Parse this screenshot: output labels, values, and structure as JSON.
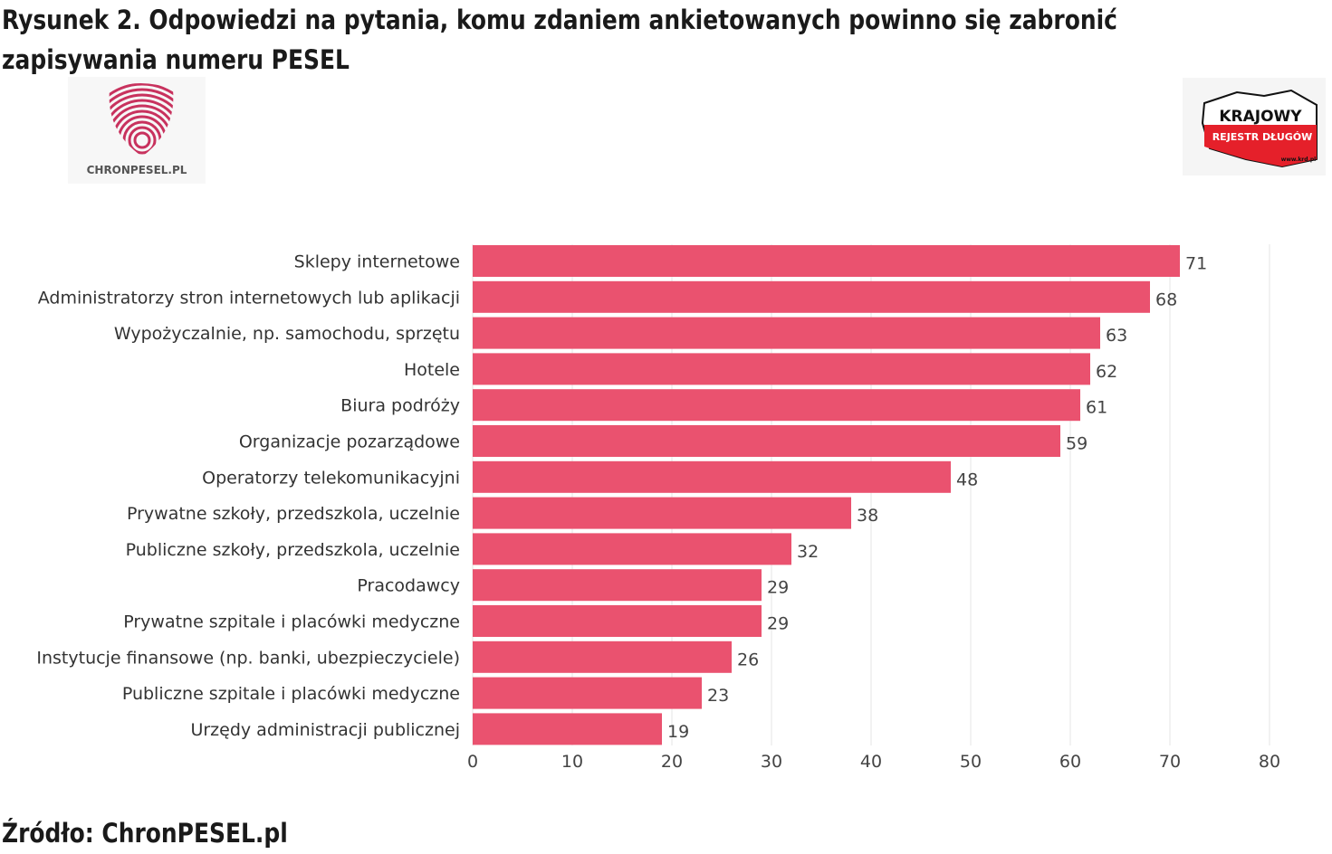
{
  "title": "Rysunek 2. Odpowiedzi na pytania, komu zdaniem ankietowanych powinno się zabronić zapisywania numeru PESEL",
  "source": "Źródło: ChronPESEL.pl",
  "logos": {
    "left": "CHRONPESEL.PL",
    "right_top": "KRAJOWY",
    "right_mid": "REJESTR DŁUGÓW",
    "right_url": "www.krd.pl"
  },
  "colors": {
    "bar": "#ea526f",
    "grid": "#e6e6e6"
  },
  "chart_data": {
    "type": "bar",
    "orientation": "horizontal",
    "title": "Rysunek 2. Odpowiedzi na pytania, komu zdaniem ankietowanych powinno się zabronić zapisywania numeru PESEL",
    "categories": [
      "Sklepy internetowe",
      "Administratorzy stron internetowych lub aplikacji",
      "Wypożyczalnie, np. samochodu, sprzętu",
      "Hotele",
      "Biura podróży",
      "Organizacje pozarządowe",
      "Operatorzy telekomunikacyjni",
      "Prywatne szkoły, przedszkola, uczelnie",
      "Publiczne szkoły, przedszkola, uczelnie",
      "Pracodawcy",
      "Prywatne szpitale i placówki medyczne",
      "Instytucje finansowe (np. banki, ubezpieczyciele)",
      "Publiczne szpitale i placówki medyczne",
      "Urzędy administracji publicznej"
    ],
    "values": [
      71,
      68,
      63,
      62,
      61,
      59,
      48,
      38,
      32,
      29,
      29,
      26,
      23,
      19
    ],
    "xlim": [
      0,
      80
    ],
    "xticks": [
      0,
      10,
      20,
      30,
      40,
      50,
      60,
      70,
      80
    ],
    "xlabel": "",
    "ylabel": "",
    "grid": true
  }
}
